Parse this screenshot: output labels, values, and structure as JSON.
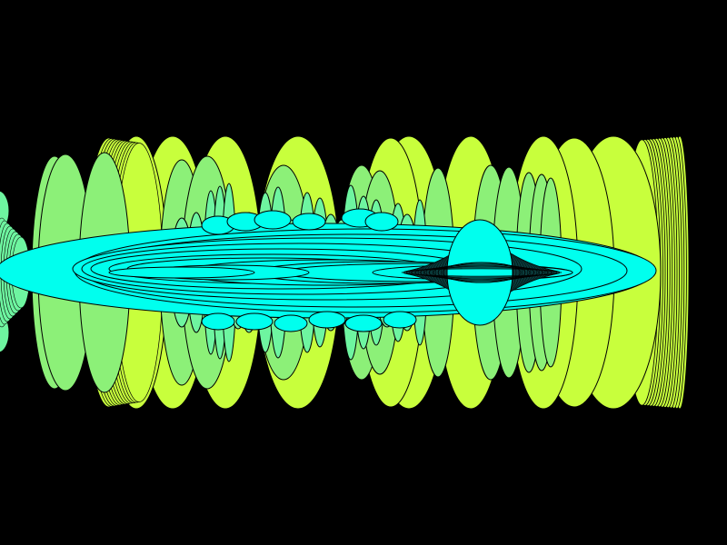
{
  "artwork": {
    "background_color": "#000000",
    "outline_color": "#000000",
    "palette": {
      "lime": "#c8ff3c",
      "light_green": "#8cf078",
      "mint": "#6ef5a0",
      "cyan": "#00ffee",
      "dark_teal": "#0a3c3c"
    },
    "motifs": [
      "vertical-ellipse-band",
      "horizontal-cyan-ellipses",
      "cyan-lemon-shape",
      "left-edge-fragment"
    ]
  }
}
